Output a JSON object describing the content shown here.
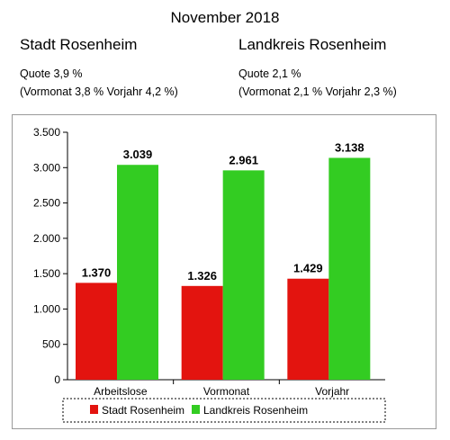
{
  "header": {
    "title": "November 2018",
    "left": {
      "heading": "Stadt Rosenheim",
      "quote": "Quote 3,9 %",
      "compare": "(Vormonat 3,8 % Vorjahr  4,2 %)"
    },
    "right": {
      "heading": "Landkreis Rosenheim",
      "quote": "Quote 2,1 %",
      "compare": "(Vormonat 2,1 % Vorjahr 2,3 %)"
    }
  },
  "chart_data": {
    "type": "bar",
    "categories": [
      "Arbeitslose",
      "Vormonat",
      "Vorjahr"
    ],
    "series": [
      {
        "name": "Stadt Rosenheim",
        "values": [
          1370,
          1326,
          1429
        ],
        "labels": [
          "1.370",
          "1.326",
          "1.429"
        ],
        "color": "#e3140f"
      },
      {
        "name": "Landkreis Rosenheim",
        "values": [
          3039,
          2961,
          3138
        ],
        "labels": [
          "3.039",
          "2.961",
          "3.138"
        ],
        "color": "#33cc22"
      }
    ],
    "ylim": [
      0,
      3500
    ],
    "yticks": [
      0,
      500,
      1000,
      1500,
      2000,
      2500,
      3000,
      3500
    ],
    "ytick_labels": [
      "0",
      "500",
      "1.000",
      "1.500",
      "2.000",
      "2.500",
      "3.000",
      "3.500"
    ],
    "grid": false,
    "legend": "bottom"
  }
}
